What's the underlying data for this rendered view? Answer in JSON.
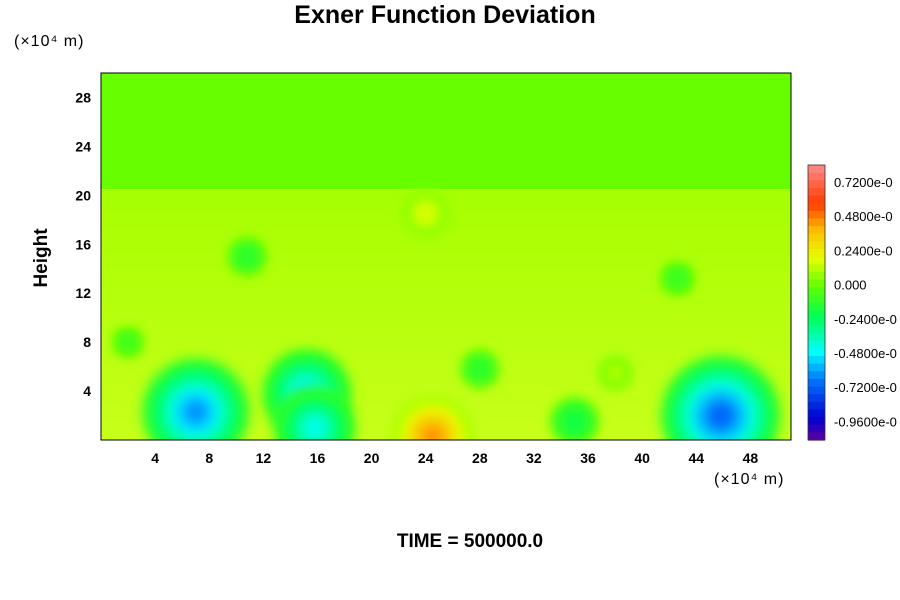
{
  "chart_data": {
    "type": "heatmap",
    "title": "Exner Function Deviation",
    "ylabel": "Height",
    "yunit": "(×10⁴ m)",
    "xunit": "(×10⁴ m)",
    "x_ticks": [
      4,
      8,
      12,
      16,
      20,
      24,
      28,
      32,
      36,
      40,
      44,
      48
    ],
    "y_ticks": [
      4,
      8,
      12,
      16,
      20,
      24,
      28
    ],
    "xlim": [
      0,
      51
    ],
    "ylim": [
      0,
      30
    ],
    "colorbar": {
      "labels": [
        "0.7200e-0",
        "0.4800e-0",
        "0.2400e-0",
        "0.000",
        "-0.2400e-0",
        "-0.4800e-0",
        "-0.7200e-0",
        "-0.9600e-0"
      ],
      "range": [
        -1.08,
        0.84
      ]
    },
    "background_value": 0,
    "features": [
      {
        "x": 15.2,
        "y": 3.8,
        "value": -0.5
      },
      {
        "x": 7.0,
        "y": 2.3,
        "value": -0.62
      },
      {
        "x": 15.8,
        "y": 1.0,
        "value": -0.45
      },
      {
        "x": 45.8,
        "y": 2.0,
        "value": -0.7
      },
      {
        "x": 10.8,
        "y": 15.0,
        "value": -0.15
      },
      {
        "x": 42.6,
        "y": 13.2,
        "value": -0.12
      },
      {
        "x": 28.0,
        "y": 5.8,
        "value": -0.15
      },
      {
        "x": 35.0,
        "y": 1.5,
        "value": -0.22
      },
      {
        "x": 2.0,
        "y": 8.0,
        "value": -0.1
      },
      {
        "x": 24.5,
        "y": 0.3,
        "value": 0.45
      },
      {
        "x": 24.0,
        "y": 18.5,
        "value": 0.2
      },
      {
        "x": 38.0,
        "y": 5.5,
        "value": 0.12
      }
    ],
    "time_label": "TIME = 500000.0"
  }
}
